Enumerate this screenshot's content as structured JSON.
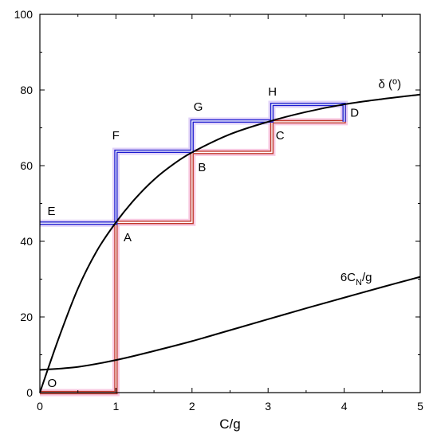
{
  "chart_data": {
    "type": "line",
    "title": "",
    "xlabel": "C/g",
    "ylabel": "",
    "xlim": [
      0,
      5
    ],
    "ylim": [
      0,
      100
    ],
    "x_ticks": [
      0,
      1,
      2,
      3,
      4,
      5
    ],
    "y_ticks": [
      0,
      20,
      40,
      60,
      80,
      100
    ],
    "grid": false,
    "series": [
      {
        "name": "δ (°)",
        "color": "#000000",
        "x": [
          0,
          0.25,
          0.5,
          0.75,
          1,
          1.25,
          1.5,
          1.75,
          2,
          2.5,
          3,
          3.5,
          4,
          4.5,
          5
        ],
        "y": [
          0,
          14.5,
          27.5,
          37.5,
          45,
          51.2,
          56.3,
          60.3,
          63.5,
          68.3,
          71.6,
          74.2,
          76.2,
          77.6,
          78.8
        ]
      },
      {
        "name": "6CN/g",
        "color": "#000000",
        "x": [
          0,
          0.5,
          1,
          1.5,
          2,
          2.5,
          3,
          3.5,
          4,
          4.5,
          5
        ],
        "y": [
          6,
          6.8,
          8.6,
          11,
          13.6,
          16.5,
          19.4,
          22.3,
          25.1,
          27.9,
          30.6
        ]
      }
    ],
    "staircases": [
      {
        "name": "lower",
        "color": "#c0392b",
        "glow": "#f7b8d8",
        "x": [
          0,
          1,
          1,
          2,
          2,
          3.05,
          3.05,
          4,
          4
        ],
        "y": [
          0,
          0,
          45,
          45,
          63.5,
          63.5,
          71.6,
          71.6,
          76
        ]
      },
      {
        "name": "upper",
        "color": "#1c1ccf",
        "glow": "#d7c4f5",
        "x": [
          0,
          1,
          1,
          2,
          2,
          3.05,
          3.05,
          4,
          4
        ],
        "y": [
          44.8,
          44.8,
          63.8,
          63.8,
          71.8,
          71.8,
          76.2,
          76.2,
          71.6
        ]
      }
    ],
    "point_labels": [
      {
        "text": "O",
        "x": 0.1,
        "y": 1.5
      },
      {
        "text": "A",
        "x": 1.1,
        "y": 40
      },
      {
        "text": "B",
        "x": 2.08,
        "y": 58.5
      },
      {
        "text": "C",
        "x": 3.1,
        "y": 67
      },
      {
        "text": "D",
        "x": 4.08,
        "y": 73
      },
      {
        "text": "E",
        "x": 0.1,
        "y": 47
      },
      {
        "text": "F",
        "x": 0.95,
        "y": 67
      },
      {
        "text": "G",
        "x": 2.02,
        "y": 74.5
      },
      {
        "text": "H",
        "x": 3.0,
        "y": 78.5
      }
    ],
    "curve_labels": [
      {
        "text": "δ (°)",
        "x": 4.45,
        "y": 80.5
      },
      {
        "text": "6CN/g",
        "x": 3.95,
        "y": 29.5
      }
    ]
  }
}
